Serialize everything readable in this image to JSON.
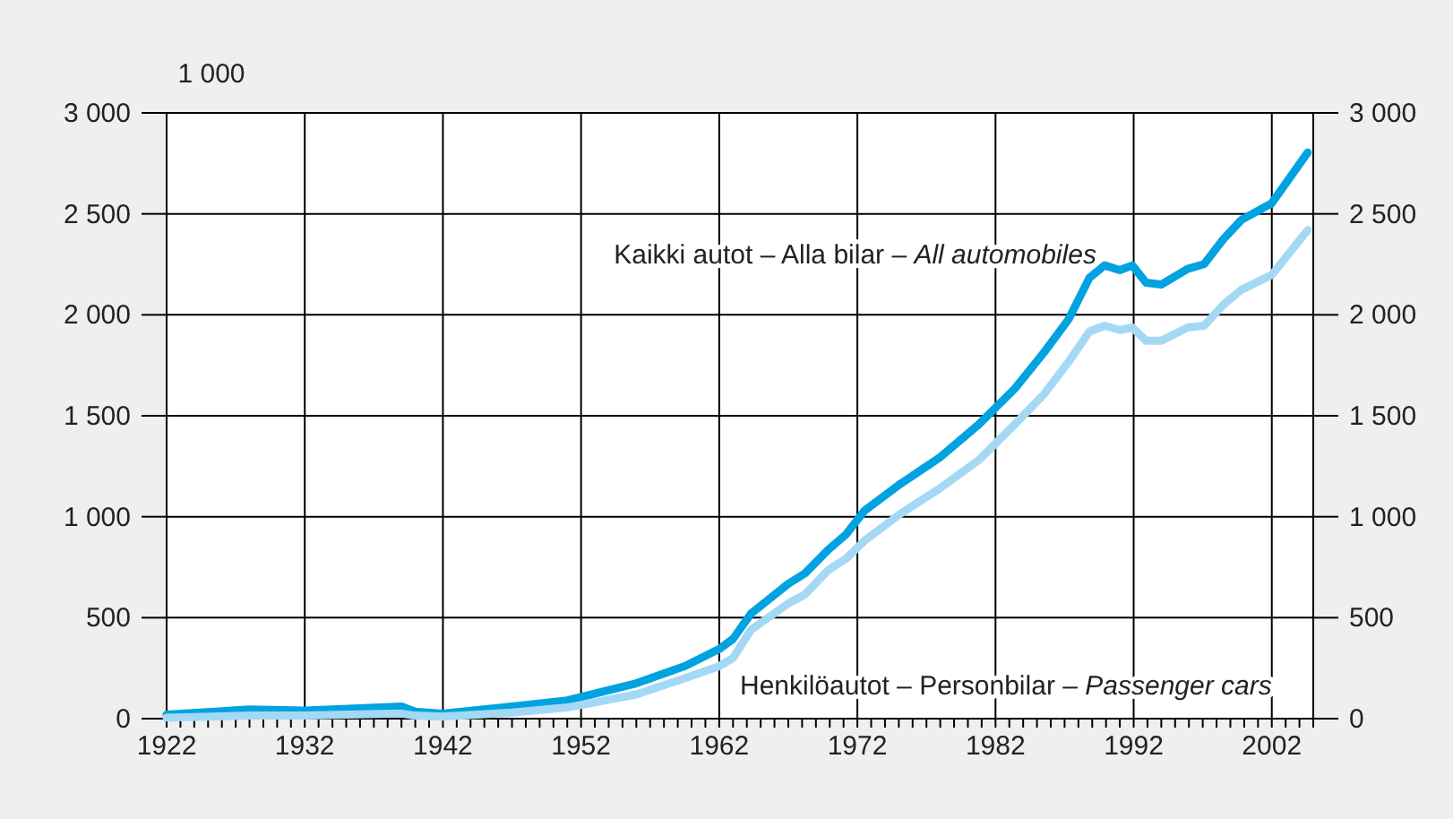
{
  "chart_data": {
    "type": "line",
    "ylabel": "1 000",
    "x": [
      1922,
      1928,
      1932,
      1939,
      1940,
      1942,
      1947,
      1951,
      1956,
      1959.5,
      1962,
      1963,
      1964.3,
      1967,
      1968.2,
      1969.9,
      1971.2,
      1972.5,
      1975.1,
      1978,
      1980.8,
      1983.4,
      1985.5,
      1987.3,
      1988.8,
      1989.9,
      1991,
      1991.9,
      1992.9,
      1994,
      1995.9,
      1997.1,
      1998.5,
      1999.8,
      2002,
      2004.6
    ],
    "series": [
      {
        "name": "Kaikki autot – Alla bilar – $_{}$All automobiles",
        "color": "#00a3e0",
        "values": [
          20,
          45,
          40,
          60,
          35,
          25,
          60,
          90,
          175,
          260,
          345,
          395,
          520,
          668,
          719,
          837,
          914,
          1029,
          1162,
          1295,
          1458,
          1635,
          1813,
          1979,
          2183,
          2245,
          2221,
          2245,
          2159,
          2150,
          2227,
          2251,
          2375,
          2470,
          2553,
          2804
        ]
      },
      {
        "name": "Henkilöautot – Personbilar – $_{}$Passenger cars",
        "color": "#a3d9f5",
        "values": [
          5,
          15,
          15,
          25,
          15,
          10,
          30,
          55,
          120,
          200,
          260,
          300,
          440,
          571,
          615,
          736,
          793,
          880,
          1014,
          1142,
          1281,
          1458,
          1606,
          1768,
          1917,
          1946,
          1925,
          1937,
          1872,
          1872,
          1937,
          1946,
          2050,
          2124,
          2198,
          2420
        ]
      }
    ],
    "xlim": [
      1922,
      2005
    ],
    "xticks": [
      1922,
      1932,
      1942,
      1952,
      1962,
      1972,
      1982,
      1992,
      2002
    ],
    "ylim": [
      0,
      3000
    ],
    "yticks": [
      0,
      500,
      {
        "value": 1000,
        "label": "1 000"
      },
      {
        "value": 1500,
        "label": "1 500"
      },
      {
        "value": 2000,
        "label": "2 000"
      },
      {
        "value": 2500,
        "label": "2 500"
      },
      {
        "value": 3000,
        "label": "3 000"
      }
    ],
    "y2lim": [
      0,
      3000
    ],
    "y2ticks": [
      0,
      500,
      {
        "value": 1000,
        "label": "1 000"
      },
      {
        "value": 1500,
        "label": "1 500"
      },
      {
        "value": 2000,
        "label": "2 000"
      },
      {
        "value": 2500,
        "label": "2 500"
      },
      {
        "value": 3000,
        "label": "3 000"
      }
    ],
    "grid": true,
    "legend": false,
    "marker": "none",
    "line_style": "solid"
  }
}
